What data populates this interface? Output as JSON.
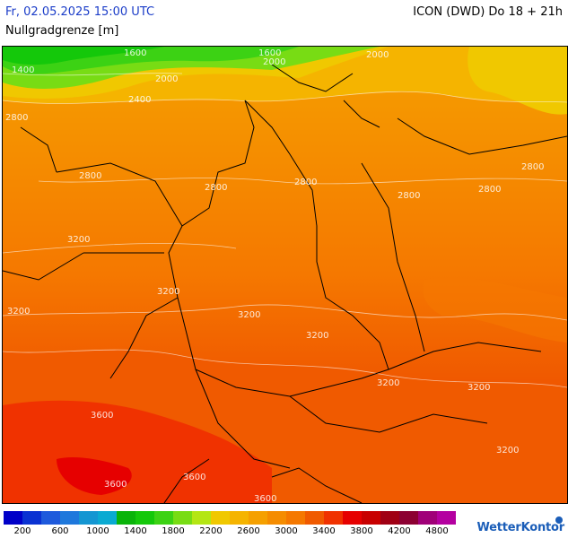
{
  "header": {
    "datetime": "Fr, 02.05.2025 15:00 UTC",
    "parameter": "Nullgradgrenze [m]",
    "model_run": "ICON (DWD) Do 18 + 21h"
  },
  "isolines": [
    {
      "label": "1600"
    },
    {
      "label": "1600"
    },
    {
      "label": "2000"
    },
    {
      "label": "2000"
    },
    {
      "label": "2000"
    },
    {
      "label": "1400"
    },
    {
      "label": "2400"
    },
    {
      "label": "2800"
    },
    {
      "label": "2800"
    },
    {
      "label": "2800"
    },
    {
      "label": "2800"
    },
    {
      "label": "2800"
    },
    {
      "label": "2800"
    },
    {
      "label": "2800"
    },
    {
      "label": "3200"
    },
    {
      "label": "3200"
    },
    {
      "label": "3200"
    },
    {
      "label": "3200"
    },
    {
      "label": "3200"
    },
    {
      "label": "3200"
    },
    {
      "label": "3200"
    },
    {
      "label": "3600"
    },
    {
      "label": "3600"
    },
    {
      "label": "3600"
    },
    {
      "label": "3600"
    },
    {
      "label": "3200"
    }
  ],
  "legend": {
    "colors": [
      "#0000c8",
      "#0a32d2",
      "#1e5adc",
      "#1e78dc",
      "#1496d2",
      "#0aaad2",
      "#0ab40a",
      "#14c80a",
      "#3cd214",
      "#78dc14",
      "#b4e614",
      "#f0c800",
      "#f5b400",
      "#f5a000",
      "#f58c00",
      "#f57800",
      "#f05a00",
      "#f03200",
      "#e60000",
      "#c80000",
      "#a00014",
      "#8c0032",
      "#a00078",
      "#b400a0"
    ],
    "labels": [
      "200",
      "600",
      "1000",
      "1400",
      "1800",
      "2200",
      "2600",
      "3000",
      "3400",
      "3800",
      "4200",
      "4800"
    ]
  },
  "brand": "WetterKontor"
}
